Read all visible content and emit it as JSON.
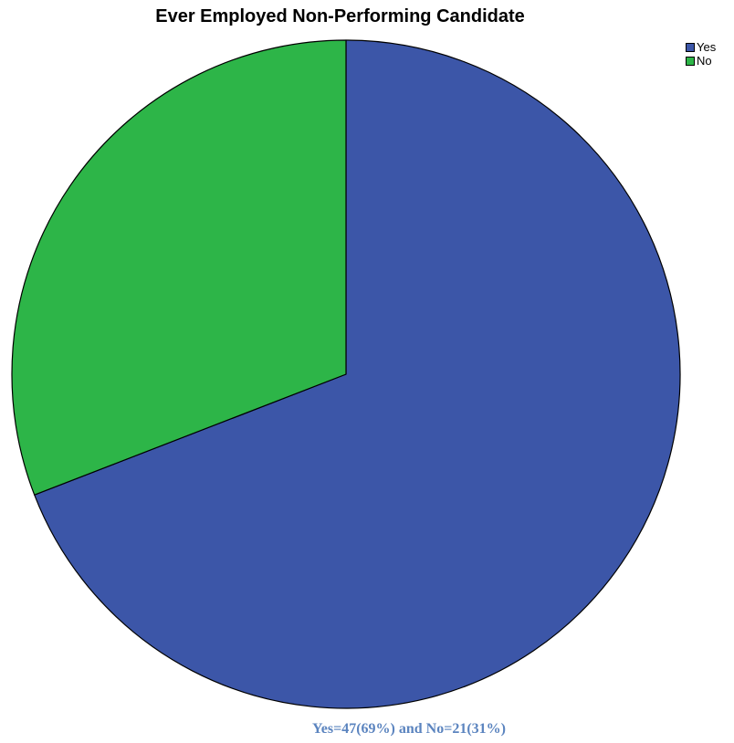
{
  "chart_data": {
    "type": "pie",
    "title": "Ever Employed Non-Performing Candidate",
    "categories": [
      "Yes",
      "No"
    ],
    "values": [
      47,
      21
    ],
    "colors": [
      "#3c56a8",
      "#2db548"
    ],
    "legend_position": "top-right",
    "start_angle": "12 o'clock",
    "direction": "clockwise"
  },
  "caption": "Yes=47(69%) and No=21(31%)"
}
